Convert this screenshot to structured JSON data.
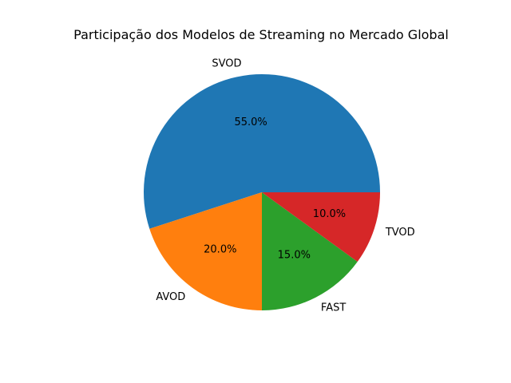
{
  "chart_data": {
    "type": "pie",
    "title": "Participação dos Modelos de Streaming no Mercado Global",
    "categories": [
      "SVOD",
      "AVOD",
      "FAST",
      "TVOD"
    ],
    "values": [
      55.0,
      20.0,
      15.0,
      10.0
    ],
    "value_labels": [
      "55.0%",
      "20.0%",
      "15.0%",
      "10.0%"
    ],
    "colors": [
      "#1f77b4",
      "#ff7f0e",
      "#2ca02c",
      "#d62728"
    ],
    "start_angle_deg": 0,
    "direction": "counterclockwise",
    "legend": "none"
  }
}
